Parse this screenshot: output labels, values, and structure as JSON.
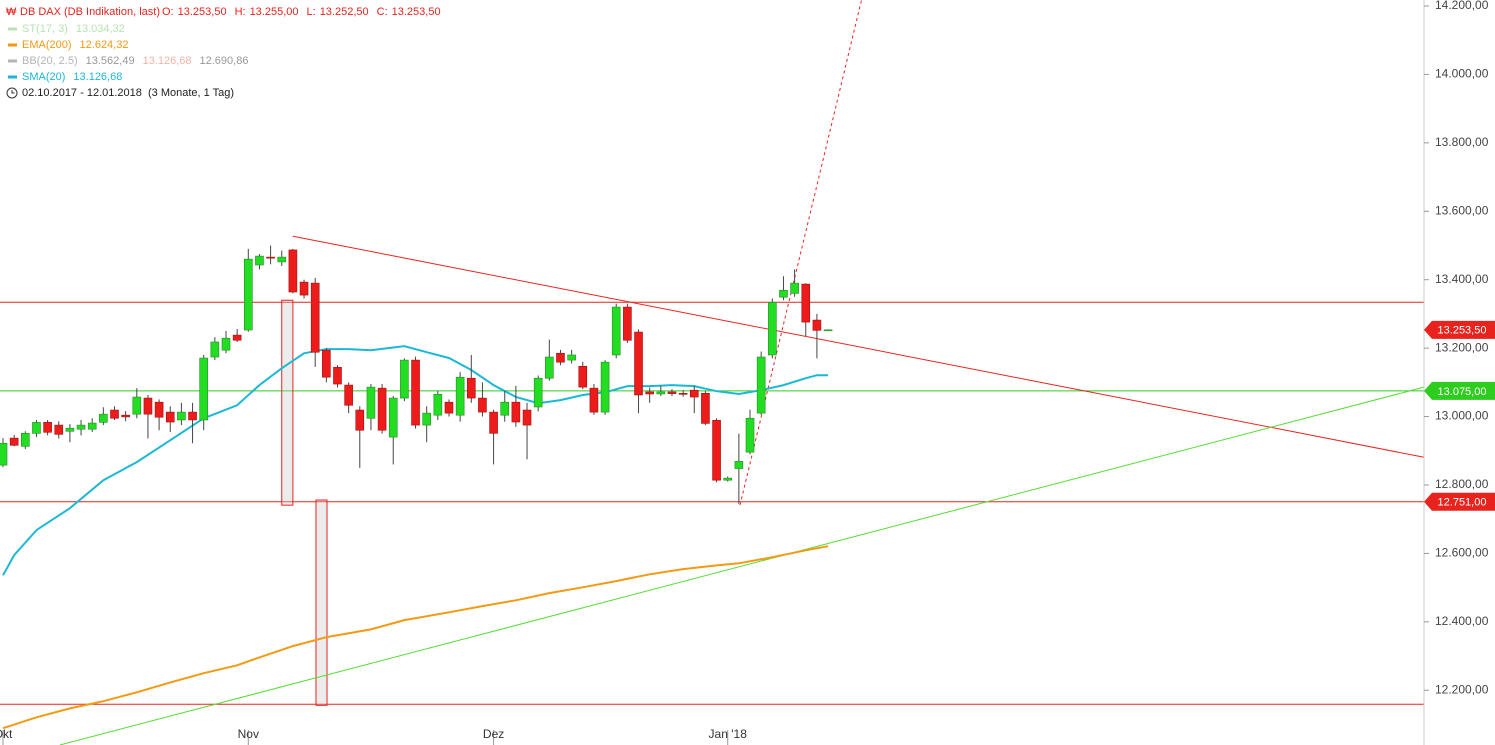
{
  "chart_data": {
    "type": "candlestick",
    "title": "DB DAX (DB Indikation, last)",
    "ohlc_header": [
      {
        "label": "O:",
        "value": "13.253,50"
      },
      {
        "label": "H:",
        "value": "13.255,00"
      },
      {
        "label": "L:",
        "value": "13.252,50"
      },
      {
        "label": "C:",
        "value": "13.253,50"
      }
    ],
    "indicator_legend": [
      {
        "name": "ST(17, 3)",
        "values": [
          "13.034,32"
        ],
        "color": "#b9e3b3"
      },
      {
        "name": "EMA(200)",
        "values": [
          "12.624,32"
        ],
        "color": "#f39a12"
      },
      {
        "name": "BB(20, 2.5)",
        "values": [
          "13.562,49",
          "13.126,68",
          "12.690,86"
        ],
        "color": "#b5b5b5"
      },
      {
        "name": "SMA(20)",
        "values": [
          "13.126,68"
        ],
        "color": "#1bb8d6"
      }
    ],
    "period": "02.10.2017 - 12.01.2018",
    "period_note": "(3 Monate, 1 Tag)",
    "categories": [
      "Okt",
      null,
      null,
      null,
      null,
      null,
      null,
      null,
      null,
      null,
      null,
      null,
      null,
      null,
      null,
      null,
      null,
      null,
      null,
      null,
      null,
      null,
      "Nov",
      null,
      null,
      null,
      null,
      null,
      null,
      null,
      null,
      null,
      null,
      null,
      null,
      null,
      null,
      null,
      null,
      null,
      null,
      null,
      null,
      null,
      "Dez",
      null,
      null,
      null,
      null,
      null,
      null,
      null,
      null,
      null,
      null,
      null,
      null,
      null,
      null,
      null,
      null,
      null,
      null,
      null,
      null,
      "Jan '18",
      null,
      null,
      null,
      null,
      null,
      null,
      null,
      null,
      null
    ],
    "open": [
      12858,
      12937,
      12913,
      12951,
      12983,
      12975,
      12957,
      12963,
      12963,
      12983,
      13019,
      13004,
      13007,
      13054,
      13042,
      13013,
      12990,
      13013,
      12990,
      13174,
      13194,
      13238,
      13253,
      13443,
      13466,
      13452,
      13487,
      13393,
      13390,
      13194,
      13144,
      13092,
      13019,
      12995,
      13083,
      12940,
      13054,
      13165,
      12975,
      13004,
      13042,
      13004,
      13112,
      13054,
      13013,
      13004,
      13042,
      13019,
      13028,
      13112,
      13185,
      13165,
      13147,
      13083,
      13013,
      13180,
      13320,
      13247,
      13072,
      13066,
      13072,
      13068,
      13077,
      13068,
      12989,
      12814,
      12848,
      12896,
      13010,
      13180,
      13349,
      13360,
      13387,
      13282,
      13253.5
    ],
    "high": [
      12937,
      12946,
      12957,
      12990,
      12990,
      12986,
      12978,
      12990,
      12995,
      13027,
      13030,
      13016,
      13083,
      13063,
      13050,
      13030,
      13040,
      13040,
      13180,
      13232,
      13250,
      13256,
      13490,
      13475,
      13500,
      13485,
      13490,
      13400,
      13405,
      13200,
      13150,
      13100,
      13030,
      13095,
      13095,
      13060,
      13170,
      13175,
      13030,
      13075,
      13050,
      13130,
      13180,
      13100,
      13020,
      13075,
      13090,
      13040,
      13120,
      13225,
      13195,
      13195,
      13160,
      13095,
      13165,
      13330,
      13330,
      13255,
      13085,
      13090,
      13080,
      13078,
      13090,
      13075,
      12995,
      12825,
      12950,
      13020,
      13190,
      13345,
      13410,
      13430,
      13390,
      13300,
      13255
    ],
    "low": [
      12852,
      12913,
      12905,
      12940,
      12945,
      12936,
      12925,
      12945,
      12955,
      12975,
      12990,
      12986,
      12995,
      12936,
      12960,
      12955,
      12975,
      12922,
      12960,
      13165,
      13185,
      13218,
      13248,
      13430,
      13445,
      13440,
      13360,
      13345,
      13145,
      13100,
      13085,
      13010,
      12850,
      12960,
      12950,
      12860,
      13045,
      12965,
      12925,
      12990,
      13000,
      12985,
      13040,
      13000,
      12860,
      12985,
      12970,
      12875,
      13015,
      13105,
      13150,
      13155,
      13080,
      13005,
      13005,
      13170,
      13215,
      13010,
      13040,
      13060,
      13060,
      13058,
      13010,
      12975,
      12808,
      12810,
      12745,
      12890,
      13005,
      13170,
      13340,
      13350,
      13235,
      13170,
      13252.5
    ],
    "close": [
      12922,
      12916,
      12951,
      12983,
      12954,
      12948,
      12966,
      12975,
      12981,
      13007,
      12995,
      12999,
      13057,
      13007,
      12998,
      12984,
      13013,
      12990,
      13171,
      13218,
      13229,
      13223,
      13460,
      13469,
      13463,
      13466,
      13364,
      13355,
      13188,
      13115,
      13095,
      13033,
      12960,
      13086,
      12960,
      13054,
      13165,
      12975,
      13010,
      13065,
      13010,
      13115,
      13054,
      13013,
      12951,
      13042,
      12984,
      12975,
      13112,
      13174,
      13159,
      13180,
      13086,
      13013,
      13159,
      13320,
      13223,
      13063,
      13066,
      13072,
      13067,
      13066,
      13057,
      12980,
      12814,
      12820,
      12869,
      12995,
      13174,
      13334,
      13369,
      13390,
      13276,
      13252,
      13253.5
    ],
    "up_color": "#22dd22",
    "down_color": "#ee1b1b",
    "lines": [
      {
        "name": "SMA(20)",
        "color": "#1bb8d6",
        "x": [
          0,
          1,
          3,
          6,
          9,
          12,
          15,
          18,
          21,
          23,
          25,
          27,
          29,
          31,
          33,
          36,
          38,
          40,
          42,
          44,
          46,
          48,
          50,
          52,
          54,
          56,
          58,
          60,
          62,
          64,
          66,
          68,
          70,
          72,
          73,
          74
        ],
        "values": [
          12536,
          12595,
          12668,
          12732,
          12814,
          12867,
          12931,
          12995,
          13033,
          13092,
          13141,
          13185,
          13197,
          13197,
          13194,
          13206,
          13188,
          13171,
          13136,
          13092,
          13057,
          13039,
          13048,
          13063,
          13071,
          13089,
          13089,
          13092,
          13089,
          13074,
          13066,
          13077,
          13092,
          13112,
          13121,
          13121
        ]
      },
      {
        "name": "EMA(200)",
        "color": "#f39a12",
        "x": [
          0,
          3,
          6,
          9,
          12,
          15,
          18,
          21,
          23,
          26,
          29,
          33,
          36,
          40,
          43,
          46,
          49,
          52,
          55,
          58,
          61,
          64,
          66,
          69,
          72,
          74
        ],
        "values": [
          12089,
          12121,
          12147,
          12168,
          12194,
          12223,
          12250,
          12273,
          12296,
          12329,
          12355,
          12378,
          12405,
          12428,
          12446,
          12463,
          12484,
          12501,
          12519,
          12539,
          12554,
          12565,
          12571,
          12589,
          12609,
          12621
        ]
      }
    ],
    "levels": [
      {
        "value": 13334,
        "color": "#e8231e"
      },
      {
        "value": 13075,
        "color": "#2ecc1e",
        "label": "13.075,00"
      },
      {
        "value": 12751,
        "color": "#e8231e",
        "label": "12.751,00"
      },
      {
        "value": 12159,
        "color": "#e8231e"
      }
    ],
    "last_price": {
      "value": 13253.5,
      "label": "13.253,50",
      "color": "#e8231e"
    },
    "trendlines": [
      {
        "x": [
          26,
          127.45
        ],
        "y": [
          13527,
          12881
        ],
        "color": "#e8231e",
        "dashed": false
      },
      {
        "x": [
          5.1,
          127.45
        ],
        "y": [
          12040,
          13086
        ],
        "color": "#55dd33",
        "dashed": false
      },
      {
        "x": [
          66.1,
          77.0
        ],
        "y": [
          12741,
          14217.5
        ],
        "color": "#e8231e",
        "dashed": true
      }
    ],
    "boxes": [
      {
        "x": [
          25.0,
          26.0
        ],
        "y": [
          12741,
          13340
        ]
      },
      {
        "x": [
          28.07,
          29.06
        ],
        "y": [
          12156,
          12756
        ]
      }
    ],
    "xlim": [
      -0.27,
      127.45
    ],
    "ylim": [
      12040,
      14217.5
    ],
    "yticks": [
      {
        "value": 12200,
        "label": "12.200,00"
      },
      {
        "value": 12400,
        "label": "12.400,00"
      },
      {
        "value": 12600,
        "label": "12.600,00"
      },
      {
        "value": 12800,
        "label": "12.800,00"
      },
      {
        "value": 13000,
        "label": "13.000,00"
      },
      {
        "value": 13200,
        "label": "13.200,00"
      },
      {
        "value": 13400,
        "label": "13.400,00"
      },
      {
        "value": 13600,
        "label": "13.600,00"
      },
      {
        "value": 13800,
        "label": "13.800,00"
      },
      {
        "value": 14000,
        "label": "14.000,00"
      },
      {
        "value": 14200,
        "label": "14.200,00"
      }
    ]
  }
}
